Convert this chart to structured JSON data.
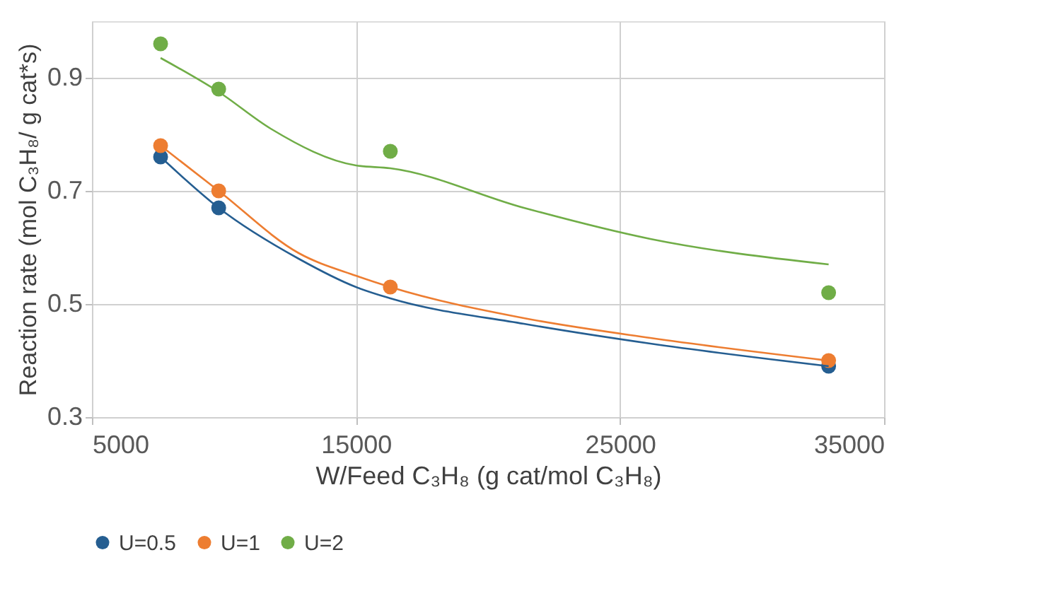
{
  "chart_data": {
    "type": "scatter",
    "xlabel": "W/Feed C₃H₈ (g cat/mol C₃H₈)",
    "ylabel": "Reaction rate (mol C₃H₈/ g cat*s)",
    "x": [
      7600,
      9800,
      16300,
      32900
    ],
    "series": [
      {
        "name": "U=0.5",
        "color": "#255e91",
        "values": [
          0.76,
          0.67,
          null,
          0.39
        ]
      },
      {
        "name": "U=1",
        "color": "#ed7d31",
        "values": [
          0.78,
          0.7,
          0.53,
          0.4
        ]
      },
      {
        "name": "U=2",
        "color": "#70ad47",
        "values": [
          0.96,
          0.88,
          0.77,
          0.52
        ]
      },
      {
        "type": "line",
        "marker": "none",
        "color": "#255e91",
        "x": [
          7600,
          9800,
          12830,
          15000,
          16300,
          21360,
          26150,
          32900
        ],
        "values": [
          0.76,
          0.67,
          0.58,
          0.53,
          0.51,
          0.465,
          0.43,
          0.39
        ]
      },
      {
        "type": "line",
        "marker": "none",
        "color": "#ed7d31",
        "x": [
          7600,
          9800,
          12830,
          15000,
          16300,
          21360,
          26150,
          32900
        ],
        "values": [
          0.78,
          0.7,
          0.59,
          0.55,
          0.53,
          0.475,
          0.44,
          0.4
        ]
      },
      {
        "type": "line",
        "marker": "none",
        "color": "#70ad47",
        "x": [
          7600,
          9800,
          11770,
          15000,
          16300,
          21360,
          26150,
          32900
        ],
        "values": [
          0.935,
          0.875,
          0.81,
          0.745,
          0.74,
          0.67,
          0.615,
          0.57
        ]
      }
    ],
    "xlim": [
      5000,
      35000
    ],
    "xticks": [
      5000,
      15000,
      25000,
      35000
    ],
    "ylim": [
      0.3,
      1.0
    ],
    "yticks": [
      0.3,
      0.5,
      0.7,
      0.9
    ],
    "grid": true,
    "legend": "bottom",
    "marker": "circle"
  }
}
